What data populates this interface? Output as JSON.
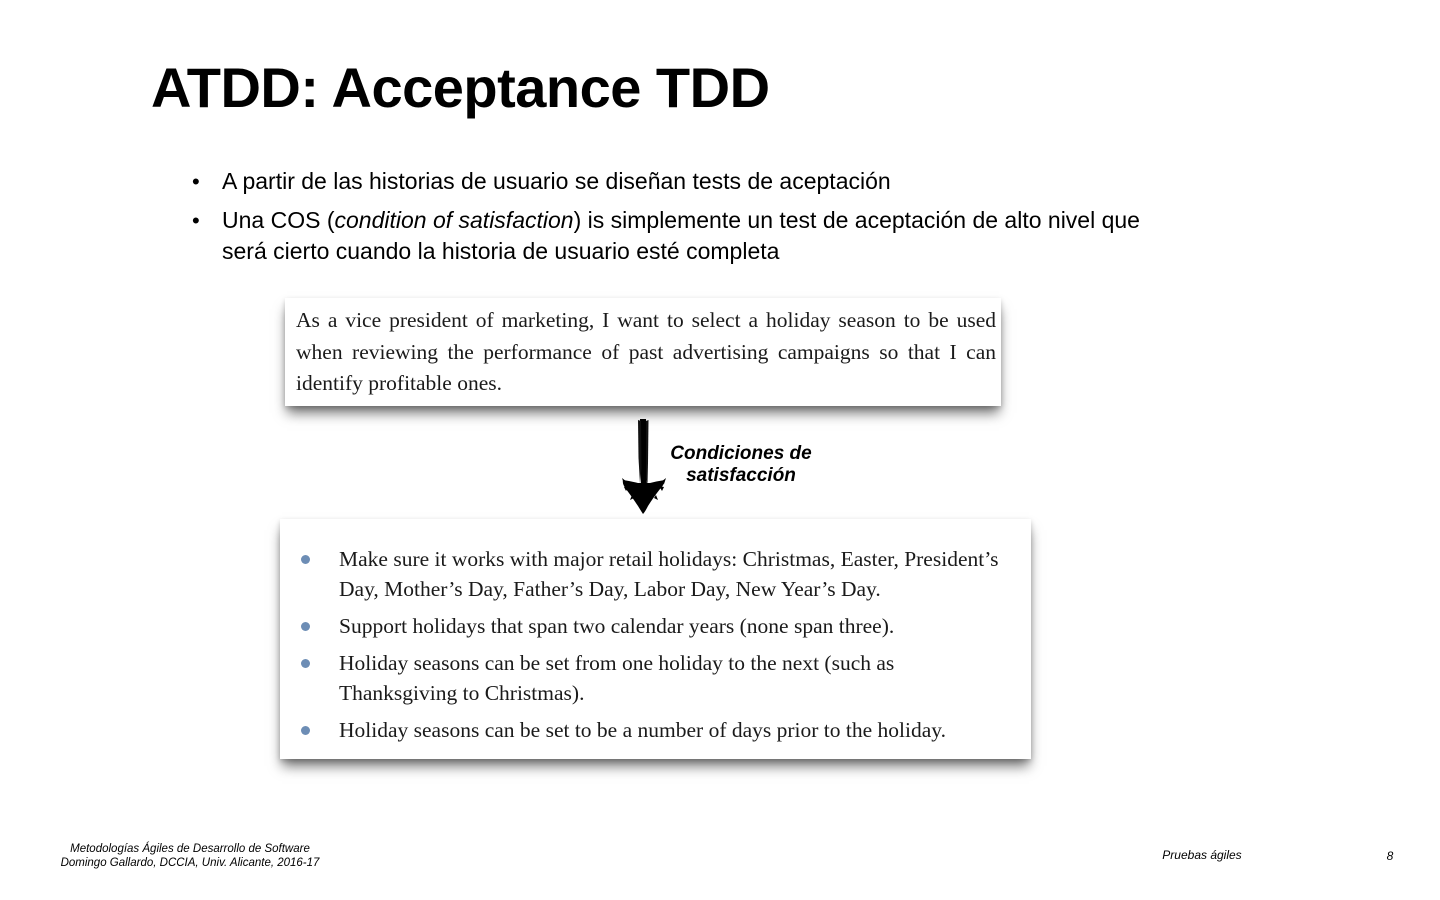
{
  "slide": {
    "title": "ATDD: Acceptance TDD",
    "bullets": [
      {
        "bullet_glyph": "•",
        "text": "A partir de las historias de usuario se diseñan tests de aceptación"
      },
      {
        "bullet_glyph": "•",
        "text_before": "Una COS (",
        "text_italic": "condition of satisfaction",
        "text_after": ") is simplemente un test de aceptación de alto nivel que será cierto cuando la historia de usuario esté completa"
      }
    ],
    "user_story": "As a vice president of marketing, I want to select a holiday season to be used when reviewing the performance of past advertising campaigns so that I can identify profitable ones.",
    "arrow_label": {
      "line1": "Condiciones de",
      "line2": "satisfacción"
    },
    "conditions": [
      "Make sure it works with major retail holidays: Christmas, Easter, President’s Day, Mother’s Day, Father’s Day, Labor Day, New Year’s Day.",
      "Support holidays that span two calendar years (none span three).",
      "Holiday seasons can be set from one holiday to the next (such as Thanksgiving to Christmas).",
      "Holiday seasons can be set to be a number of days prior to the holiday."
    ],
    "footer": {
      "course": "Metodologías Ágiles de Desarrollo de Software",
      "author": "Domingo Gallardo, DCCIA, Univ. Alicante, 2016-17",
      "topic": "Pruebas ágiles",
      "page_number": "8"
    },
    "colors": {
      "bullet_blue": "#6d8db5",
      "text": "#000000",
      "background": "#ffffff"
    },
    "icons": {
      "arrow": "hand-drawn-down-arrow-icon"
    }
  }
}
